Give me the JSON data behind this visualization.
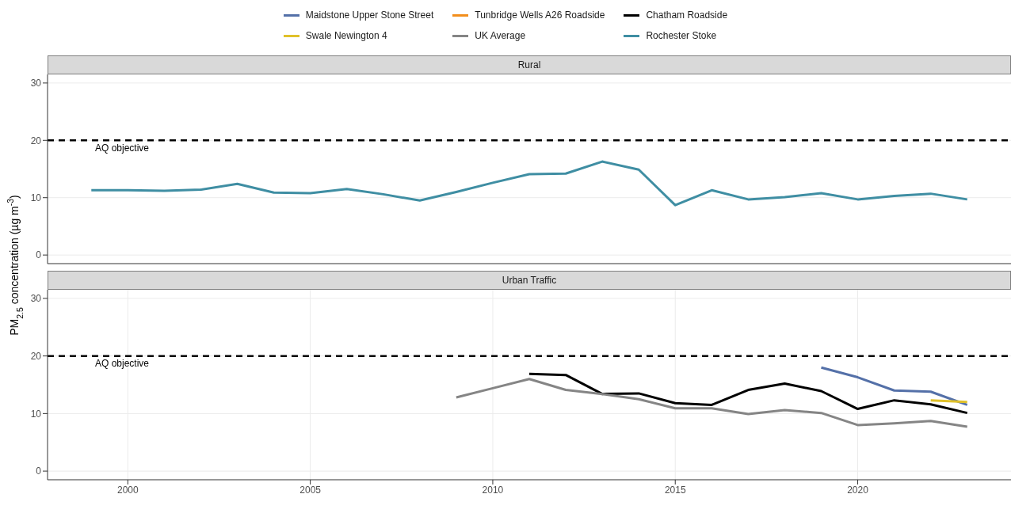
{
  "chart_data": [
    {
      "type": "line",
      "title": "Rural",
      "ylabel": "PM$_{2.5}$ concentration (µg m$^{-3}$)",
      "x": [
        1999,
        2000,
        2001,
        2002,
        2003,
        2004,
        2005,
        2006,
        2007,
        2008,
        2009,
        2010,
        2011,
        2012,
        2013,
        2014,
        2015,
        2016,
        2017,
        2018,
        2019,
        2020,
        2021,
        2022,
        2023
      ],
      "series": [
        {
          "name": "Rochester Stoke",
          "color": "#3f8ea3",
          "values": [
            11.3,
            11.3,
            11.2,
            11.4,
            12.4,
            10.9,
            10.8,
            11.5,
            10.6,
            9.5,
            11.0,
            12.6,
            14.1,
            14.2,
            16.3,
            14.9,
            8.7,
            11.3,
            9.7,
            10.1,
            10.8,
            9.7,
            10.3,
            10.7,
            9.7
          ]
        }
      ],
      "xlim": [
        1997.8,
        2024.2
      ],
      "xticks": [
        2000,
        2005,
        2010,
        2015,
        2020
      ],
      "ylim": [
        -1.5,
        31.5
      ],
      "yticks": [
        0,
        10,
        20,
        30
      ],
      "tick_labels": "y",
      "grid": true,
      "legend": "top",
      "marker": "none",
      "ref_lines": [
        {
          "axis": "y",
          "value": 20,
          "label": "AQ objective",
          "color": "#000000",
          "line_style": "dashed"
        }
      ]
    },
    {
      "type": "line",
      "title": "Urban Traffic",
      "x": [
        2009,
        2010,
        2011,
        2012,
        2013,
        2014,
        2015,
        2016,
        2017,
        2018,
        2019,
        2020,
        2021,
        2022,
        2023
      ],
      "series": [
        {
          "name": "Maidstone Upper Stone Street",
          "color": "#5470a8",
          "values": [
            null,
            null,
            null,
            null,
            null,
            null,
            null,
            null,
            null,
            null,
            18.0,
            16.3,
            14.0,
            13.8,
            11.5
          ]
        },
        {
          "name": "Tunbridge Wells A26 Roadside",
          "color": "#f28e1c",
          "values": [
            null,
            null,
            null,
            null,
            null,
            null,
            null,
            null,
            null,
            null,
            null,
            null,
            null,
            null,
            null
          ]
        },
        {
          "name": "Chatham Roadside",
          "color": "#000000",
          "values": [
            null,
            null,
            16.9,
            16.7,
            13.4,
            13.5,
            11.8,
            11.5,
            14.1,
            15.2,
            13.9,
            10.8,
            12.3,
            11.6,
            10.1
          ]
        },
        {
          "name": "Swale Newington 4",
          "color": "#e0c12a",
          "values": [
            null,
            null,
            null,
            null,
            null,
            null,
            null,
            null,
            null,
            null,
            null,
            null,
            null,
            12.3,
            12.0
          ]
        },
        {
          "name": "UK Average",
          "color": "#858585",
          "values": [
            12.8,
            14.4,
            16.0,
            14.1,
            13.4,
            12.5,
            10.9,
            10.9,
            9.9,
            10.6,
            10.1,
            8.0,
            8.3,
            8.7,
            7.7
          ]
        }
      ],
      "xlim": [
        1997.8,
        2024.2
      ],
      "xticks": [
        2000,
        2005,
        2010,
        2015,
        2020
      ],
      "ylim": [
        -1.5,
        31.5
      ],
      "yticks": [
        0,
        10,
        20,
        30
      ],
      "grid": true,
      "legend": "top",
      "marker": "none",
      "ref_lines": [
        {
          "axis": "y",
          "value": 20,
          "label": "AQ objective",
          "color": "#000000",
          "line_style": "dashed"
        }
      ]
    }
  ]
}
